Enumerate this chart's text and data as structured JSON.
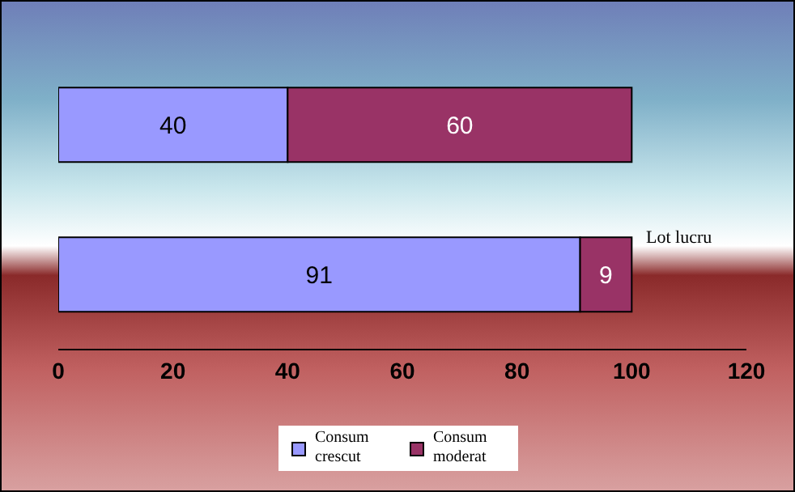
{
  "chart_data": {
    "type": "bar",
    "orientation": "horizontal",
    "stacked": true,
    "categories": [
      null,
      "Lot lucru"
    ],
    "series": [
      {
        "name": "Consum crescut",
        "color": "#9999ff",
        "values": [
          40,
          91
        ]
      },
      {
        "name": "Consum moderat",
        "color": "#993366",
        "values": [
          60,
          9
        ]
      }
    ],
    "xlim": [
      0,
      120
    ],
    "xticks": [
      0,
      20,
      40,
      60,
      80,
      100,
      120
    ],
    "data_labels": true,
    "grid": false,
    "legend": "bottom"
  }
}
